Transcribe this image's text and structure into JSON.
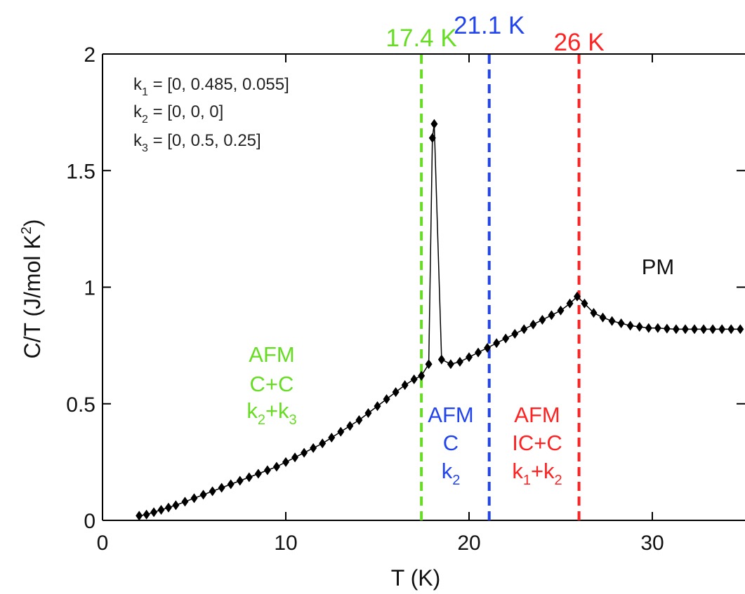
{
  "chart_data": {
    "type": "scatter",
    "xlabel": "T (K)",
    "ylabel": "C/T (J/mol K²)",
    "xlim": [
      0,
      35
    ],
    "ylim": [
      0,
      2
    ],
    "x_ticks": [
      "0",
      "10",
      "20",
      "30"
    ],
    "y_ticks": [
      "0",
      "0.5",
      "1",
      "1.5",
      "2"
    ],
    "grid": false,
    "colors": {
      "data": "#000000",
      "t1": "#66dd22",
      "t2": "#2244ee",
      "t3": "#ff2222"
    },
    "series": [
      {
        "x": [
          2.0,
          2.4,
          2.8,
          3.2,
          3.6,
          4.0,
          4.5,
          5.0,
          5.5,
          6.0,
          6.5,
          7.0,
          7.5,
          8.0,
          8.5,
          9.0,
          9.5,
          10.0,
          10.5,
          11.0,
          11.5,
          12.0,
          12.5,
          13.0,
          13.5,
          14.0,
          14.5,
          15.0,
          15.5,
          16.0,
          16.5,
          17.0,
          17.4,
          17.8,
          18.0,
          18.1,
          18.5,
          19.0,
          19.5,
          20.0,
          20.5,
          21.0,
          21.5,
          22.0,
          22.5,
          23.0,
          23.5,
          24.0,
          24.5,
          25.0,
          25.5,
          25.9,
          26.3,
          26.8,
          27.3,
          27.8,
          28.3,
          28.8,
          29.3,
          29.8,
          30.3,
          30.8,
          31.3,
          31.8,
          32.3,
          32.8,
          33.3,
          33.8,
          34.3,
          34.8
        ],
        "y": [
          0.02,
          0.025,
          0.035,
          0.045,
          0.055,
          0.065,
          0.08,
          0.095,
          0.11,
          0.125,
          0.14,
          0.155,
          0.17,
          0.185,
          0.2,
          0.215,
          0.23,
          0.25,
          0.27,
          0.29,
          0.31,
          0.33,
          0.355,
          0.38,
          0.405,
          0.43,
          0.46,
          0.49,
          0.52,
          0.55,
          0.58,
          0.605,
          0.62,
          0.67,
          1.64,
          1.7,
          0.69,
          0.67,
          0.68,
          0.7,
          0.72,
          0.74,
          0.76,
          0.78,
          0.8,
          0.82,
          0.84,
          0.86,
          0.88,
          0.9,
          0.93,
          0.96,
          0.93,
          0.89,
          0.87,
          0.855,
          0.845,
          0.835,
          0.83,
          0.825,
          0.825,
          0.822,
          0.82,
          0.82,
          0.82,
          0.82,
          0.82,
          0.82,
          0.82,
          0.82
        ]
      }
    ],
    "transitions": [
      {
        "x": 17.4,
        "label": "17.4 K",
        "color": "#66dd22"
      },
      {
        "x": 21.1,
        "label": "21.1 K",
        "color": "#2244ee"
      },
      {
        "x": 26,
        "label": "26 K",
        "color": "#ff2222"
      }
    ],
    "k_vectors": [
      {
        "k": "k",
        "sub": "1",
        "value": " = [0, 0.485, 0.055]"
      },
      {
        "k": "k",
        "sub": "2",
        "value": " = [0, 0, 0]"
      },
      {
        "k": "k",
        "sub": "3",
        "value": " = [0, 0.5, 0.25]"
      }
    ],
    "phases": {
      "pm": "PM",
      "green": {
        "line1": "AFM",
        "line2": "C+C",
        "k_a": "k",
        "sub_a": "2",
        "plus": "+k",
        "sub_b": "3"
      },
      "blue": {
        "line1": "AFM",
        "line2": "C",
        "k_a": "k",
        "sub_a": "2"
      },
      "red": {
        "line1": "AFM",
        "line2": "IC+C",
        "k_a": "k",
        "sub_a": "1",
        "plus": "+k",
        "sub_b": "2"
      }
    }
  }
}
